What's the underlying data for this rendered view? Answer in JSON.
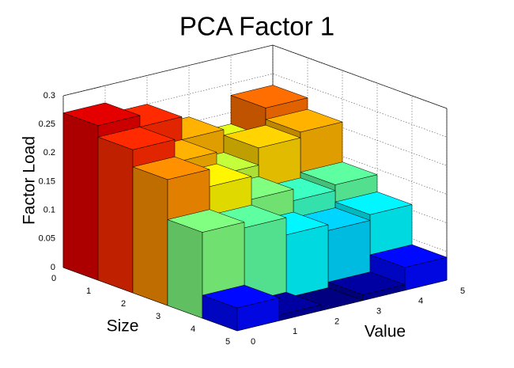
{
  "chart_data": {
    "type": "bar3d",
    "title": "PCA Factor 1",
    "xlabel": "Size",
    "ylabel": "Value",
    "zlabel": "Factor Load",
    "xlim": [
      0,
      5
    ],
    "xticks": [
      0,
      1,
      2,
      3,
      4,
      5
    ],
    "ylim": [
      0,
      5
    ],
    "yticks": [
      0,
      1,
      2,
      3,
      4,
      5
    ],
    "zlim": [
      0,
      0.3
    ],
    "zticks": [
      0,
      0.05,
      0.1,
      0.15,
      0.2,
      0.25,
      0.3
    ],
    "values": [
      [
        0.27,
        0.25,
        0.21,
        0.18,
        0.23
      ],
      [
        0.25,
        0.21,
        0.17,
        0.2,
        0.21
      ],
      [
        0.22,
        0.19,
        0.15,
        0.13,
        0.14
      ],
      [
        0.15,
        0.14,
        0.11,
        0.1,
        0.11
      ],
      [
        0.04,
        0.01,
        0.0,
        0.01,
        0.04
      ]
    ],
    "colormap": "jet",
    "grid": true
  }
}
